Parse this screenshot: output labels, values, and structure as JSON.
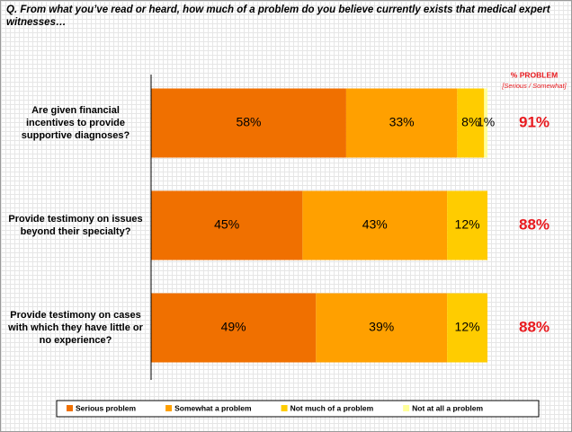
{
  "chart_data": {
    "type": "stacked_bar_horizontal",
    "title": "Q. From what you’ve read or heard, how much of a problem do you believe currently exists that medical expert witnesses…",
    "categories": [
      "Are given financial incentives to provide supportive diagnoses?",
      "Provide testimony on issues beyond their specialty?",
      "Provide testimony on cases with which they have little or no experience?"
    ],
    "series": [
      {
        "name": "Serious problem",
        "color": "#f07000",
        "values": [
          58,
          45,
          49
        ],
        "value_labels": [
          "58%",
          "45%",
          "49%"
        ]
      },
      {
        "name": "Somewhat a problem",
        "color": "#ffa000",
        "values": [
          33,
          43,
          39
        ],
        "value_labels": [
          "33%",
          "43%",
          "39%"
        ]
      },
      {
        "name": "Not much of a problem",
        "color": "#ffcc00",
        "values": [
          8,
          12,
          12
        ],
        "value_labels": [
          "8%",
          "12%",
          "12%"
        ]
      },
      {
        "name": "Not at all a problem",
        "color": "#ffff99",
        "values": [
          1,
          0,
          0
        ],
        "value_labels": [
          "1%",
          null,
          null
        ]
      }
    ],
    "xlim": [
      0,
      100
    ],
    "totals": {
      "title": "% PROBLEM",
      "subtitle": "[Serious / Somewhat]",
      "color": "#e8191e",
      "values": [
        91,
        88,
        88
      ],
      "value_labels": [
        "91%",
        "88%",
        "88%"
      ]
    },
    "legend": "bottom"
  }
}
